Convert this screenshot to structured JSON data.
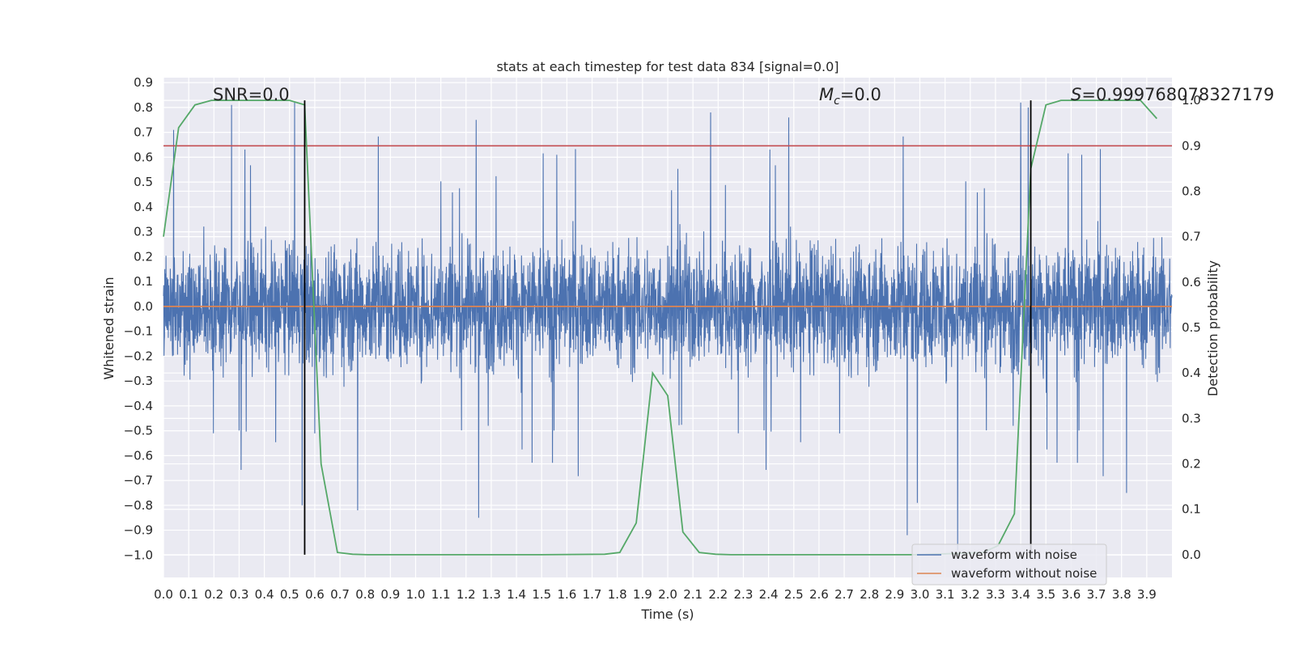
{
  "chart_data": {
    "type": "line",
    "title": "stats at each timestep for test data 834 [signal=0.0]",
    "xlabel": "Time (s)",
    "ylabel": "Whitened strain",
    "y2label": "Detection probability",
    "xlim": [
      0.0,
      4.0
    ],
    "ylim": [
      -1.09,
      0.92
    ],
    "y2lim": [
      -0.05,
      1.05
    ],
    "grid": true,
    "x_ticks": [
      "0.0",
      "0.1",
      "0.2",
      "0.3",
      "0.4",
      "0.5",
      "0.6",
      "0.7",
      "0.8",
      "0.9",
      "1.0",
      "1.1",
      "1.2",
      "1.3",
      "1.4",
      "1.5",
      "1.6",
      "1.7",
      "1.8",
      "1.9",
      "2.0",
      "2.1",
      "2.2",
      "2.3",
      "2.4",
      "2.5",
      "2.6",
      "2.7",
      "2.8",
      "2.9",
      "3.0",
      "3.1",
      "3.2",
      "3.3",
      "3.4",
      "3.5",
      "3.6",
      "3.7",
      "3.8",
      "3.9"
    ],
    "y_ticks": [
      "0.9",
      "0.8",
      "0.7",
      "0.6",
      "0.5",
      "0.4",
      "0.3",
      "0.2",
      "0.1",
      "0.0",
      "−0.1",
      "−0.2",
      "−0.3",
      "−0.4",
      "−0.5",
      "−0.6",
      "−0.7",
      "−0.8",
      "−0.9",
      "−1.0"
    ],
    "y2_ticks": [
      "1.0",
      "0.9",
      "0.8",
      "0.7",
      "0.6",
      "0.5",
      "0.4",
      "0.3",
      "0.2",
      "0.1",
      "0.0"
    ],
    "annotations": {
      "snr": "SNR=0.0",
      "mc_sym": "M",
      "mc_sub": "c",
      "mc_val": "=0.0",
      "s_sym": "S",
      "s_val": "=0.999768078327179"
    },
    "legend": {
      "position": "lower-right",
      "entries": [
        "waveform with noise",
        "waveform without noise"
      ]
    },
    "series": [
      {
        "name": "waveform with noise",
        "color": "#4c72b0",
        "axis": "left",
        "description": "whitened strain noise, ~4096 samples, amplitude mostly within ±0.5 with spikes to ~0.82 and ~-0.98",
        "spikes_up": [
          {
            "x": 0.04,
            "y": 0.71
          },
          {
            "x": 0.27,
            "y": 0.81
          },
          {
            "x": 0.52,
            "y": 0.82
          },
          {
            "x": 1.24,
            "y": 0.75
          },
          {
            "x": 2.17,
            "y": 0.78
          },
          {
            "x": 2.48,
            "y": 0.76
          },
          {
            "x": 3.4,
            "y": 0.82
          },
          {
            "x": 3.43,
            "y": 0.8
          }
        ],
        "spikes_down": [
          {
            "x": 0.55,
            "y": -0.8
          },
          {
            "x": 0.77,
            "y": -0.82
          },
          {
            "x": 1.25,
            "y": -0.85
          },
          {
            "x": 2.95,
            "y": -0.92
          },
          {
            "x": 2.99,
            "y": -0.79
          },
          {
            "x": 3.15,
            "y": -0.98
          },
          {
            "x": 3.82,
            "y": -0.75
          }
        ]
      },
      {
        "name": "waveform without noise",
        "color": "#dd8452",
        "axis": "left",
        "x": [
          0.0,
          4.0
        ],
        "y": [
          0.0,
          0.0
        ]
      },
      {
        "name": "detection probability",
        "color": "#55a868",
        "axis": "right",
        "x": [
          0.0,
          0.06,
          0.125,
          0.19,
          0.25,
          0.31,
          0.375,
          0.44,
          0.5,
          0.56,
          0.625,
          0.69,
          0.75,
          0.81,
          0.875,
          1.0,
          1.5,
          1.75,
          1.81,
          1.875,
          1.94,
          2.0,
          2.06,
          2.125,
          2.19,
          2.25,
          3.0,
          3.25,
          3.31,
          3.375,
          3.44,
          3.5,
          3.56,
          3.625,
          3.75,
          3.875,
          3.94
        ],
        "y": [
          0.7,
          0.94,
          0.99,
          1.0,
          1.0,
          1.0,
          1.0,
          1.0,
          1.0,
          0.99,
          0.2,
          0.005,
          0.001,
          0.0,
          0.0,
          0.0,
          0.0,
          0.001,
          0.005,
          0.07,
          0.4,
          0.35,
          0.05,
          0.005,
          0.001,
          0.0,
          0.0,
          0.005,
          0.02,
          0.09,
          0.85,
          0.99,
          1.0,
          1.0,
          1.0,
          1.0,
          0.96
        ]
      }
    ],
    "threshold": {
      "axis": "right",
      "y": 0.9,
      "color": "#c44e52"
    },
    "vlines": {
      "color": "#000000",
      "x": [
        0.56,
        3.44
      ],
      "y2_range": [
        0.0,
        1.0
      ]
    }
  }
}
